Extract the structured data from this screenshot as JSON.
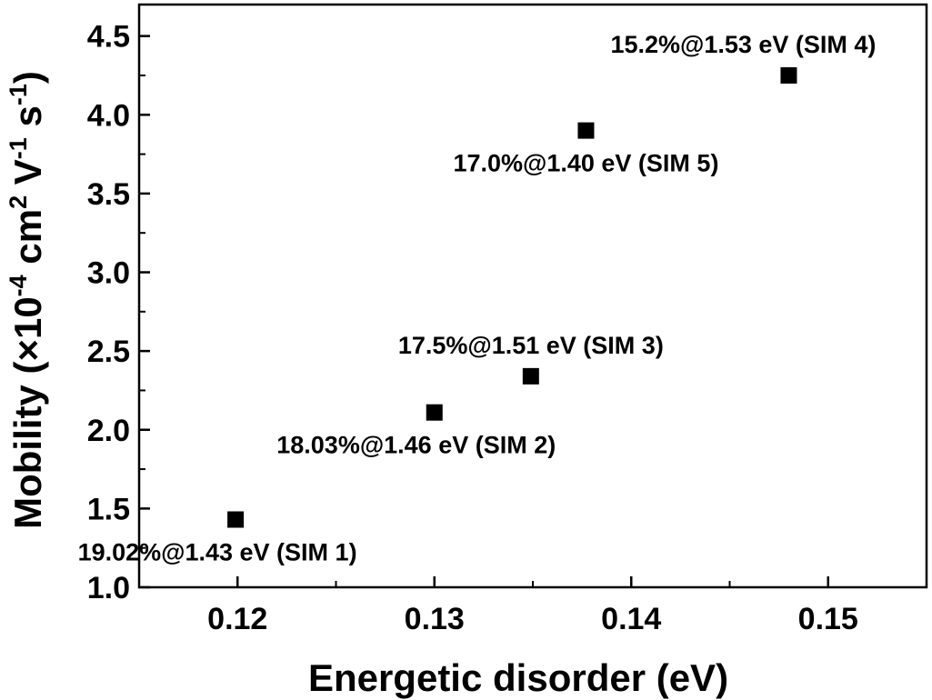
{
  "chart_data": {
    "type": "scatter",
    "xlabel": "Energetic disorder (eV)",
    "ylabel": {
      "prefix": "Mobility (×10",
      "exp1": "-4",
      "mid1": " cm",
      "exp2": "2",
      "mid2": " V",
      "exp3": "-1",
      "mid3": " s",
      "exp4": "-1",
      "suffix": ")"
    },
    "xlim": [
      0.115,
      0.155
    ],
    "ylim": [
      1.0,
      4.7
    ],
    "xticks": [
      "0.12",
      "0.13",
      "0.14",
      "0.15"
    ],
    "xtick_values": [
      0.12,
      0.13,
      0.14,
      0.15
    ],
    "yticks": [
      "1.0",
      "1.5",
      "2.0",
      "2.5",
      "3.0",
      "3.5",
      "4.0",
      "4.5"
    ],
    "ytick_values": [
      1.0,
      1.5,
      2.0,
      2.5,
      3.0,
      3.5,
      4.0,
      4.5
    ],
    "marker_color": "#000000",
    "points": [
      {
        "x": 0.1199,
        "y": 1.43,
        "label": "19.02%@1.43 eV (SIM 1)",
        "label_pos": "below"
      },
      {
        "x": 0.13,
        "y": 2.11,
        "label": "18.03%@1.46 eV (SIM 2)",
        "label_pos": "below"
      },
      {
        "x": 0.1349,
        "y": 2.34,
        "label": "17.5%@1.51 eV (SIM 3)",
        "label_pos": "above"
      },
      {
        "x": 0.1377,
        "y": 3.9,
        "label": "17.0%@1.40 eV (SIM 5)",
        "label_pos": "below"
      },
      {
        "x": 0.148,
        "y": 4.25,
        "label": "15.2%@1.53 eV (SIM 4)",
        "label_pos": "above"
      }
    ]
  }
}
